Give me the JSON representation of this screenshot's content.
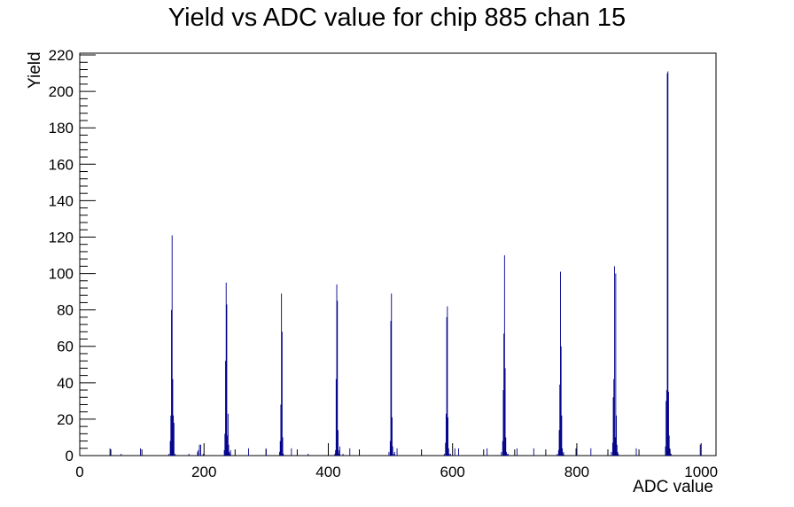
{
  "chart_data": {
    "type": "bar",
    "title": "Yield vs ADC value for chip 885 chan 15",
    "xlabel": "ADC value",
    "ylabel": "Yield",
    "xlim": [
      0,
      1024
    ],
    "ylim": [
      0,
      221
    ],
    "x_ticks": [
      "0",
      "200",
      "400",
      "600",
      "800",
      "1000"
    ],
    "y_ticks": [
      "0",
      "20",
      "40",
      "60",
      "80",
      "100",
      "120",
      "140",
      "160",
      "180",
      "200",
      "220"
    ],
    "colors": {
      "histogram": "#00008b",
      "axis": "#000000"
    },
    "series": [
      {
        "x": [
          48,
          66,
          97,
          143,
          145,
          146,
          147,
          148,
          149,
          150,
          151,
          153,
          175,
          189,
          190,
          192,
          194,
          198,
          232,
          233,
          234,
          235,
          236,
          237,
          238,
          239,
          240,
          241,
          242,
          271,
          299,
          321,
          322,
          323,
          324,
          325,
          326,
          327,
          340,
          367,
          410,
          411,
          412,
          413,
          414,
          415,
          416,
          417,
          418,
          423,
          434,
          497,
          499,
          500,
          501,
          502,
          503,
          505,
          506,
          510,
          586,
          588,
          589,
          590,
          591,
          592,
          593,
          594,
          596,
          603,
          609,
          655,
          678,
          680,
          681,
          682,
          683,
          684,
          685,
          686,
          687,
          689,
          703,
          730,
          768,
          770,
          771,
          772,
          773,
          774,
          775,
          776,
          777,
          778,
          798,
          822,
          855,
          857,
          858,
          859,
          860,
          861,
          862,
          863,
          864,
          865,
          866,
          895,
          942,
          943,
          944,
          945,
          946,
          947,
          948,
          949,
          950,
          951,
          998
        ],
        "values": [
          4,
          1,
          4,
          1,
          8,
          22,
          80,
          121,
          42,
          22,
          18,
          1,
          1,
          2,
          3,
          6,
          6,
          1,
          3,
          12,
          52,
          95,
          83,
          11,
          23,
          6,
          2,
          1,
          3,
          4,
          4,
          2,
          8,
          28,
          89,
          68,
          10,
          1,
          4,
          1,
          1,
          3,
          42,
          94,
          85,
          14,
          3,
          1,
          5,
          1,
          4,
          2,
          8,
          74,
          89,
          21,
          5,
          1,
          2,
          4,
          1,
          7,
          23,
          76,
          82,
          21,
          4,
          1,
          1,
          4,
          4,
          4,
          2,
          8,
          36,
          67,
          110,
          48,
          10,
          2,
          1,
          1,
          4,
          4,
          1,
          3,
          14,
          39,
          101,
          60,
          22,
          4,
          1,
          2,
          4,
          4,
          2,
          7,
          32,
          42,
          104,
          10,
          100,
          22,
          6,
          2,
          1,
          4,
          5,
          30,
          36,
          210,
          211,
          35,
          11,
          4,
          1,
          1,
          6
        ]
      }
    ]
  }
}
